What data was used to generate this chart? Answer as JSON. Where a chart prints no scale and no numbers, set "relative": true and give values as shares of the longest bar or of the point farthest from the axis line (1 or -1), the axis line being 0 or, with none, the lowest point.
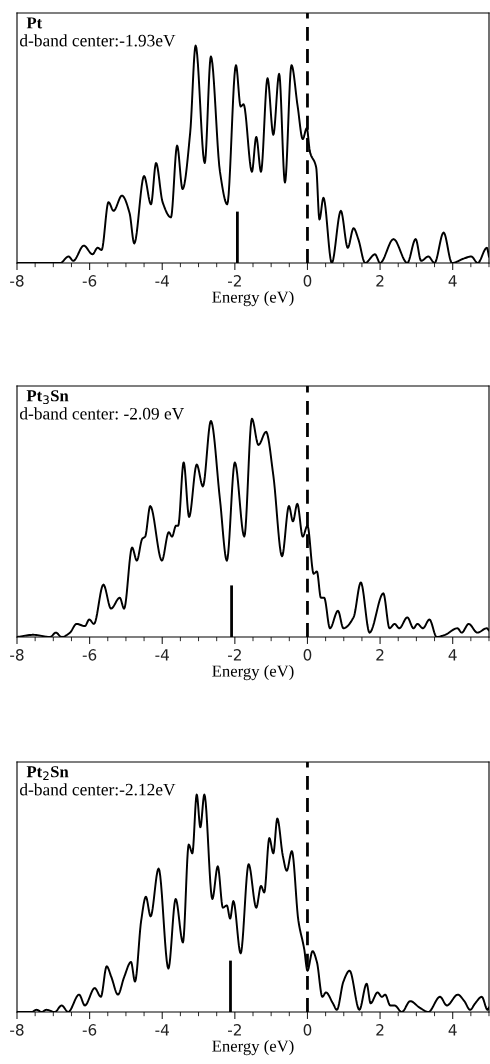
{
  "chart_data": [
    {
      "type": "line",
      "title": "Pt",
      "subtitle": "d-band center:-1.93eV",
      "xlabel": "Energy (eV)",
      "relative": true,
      "tick_labels": "x",
      "xlim": [
        -8,
        5
      ],
      "xticks": [
        -8,
        -6,
        -4,
        -2,
        0,
        2,
        4
      ],
      "marker": "none",
      "line_style": "solid",
      "grid": false,
      "ref_lines": [
        {
          "axis": "x",
          "value": -1.93,
          "line_style": "solid"
        },
        {
          "axis": "x",
          "value": 0,
          "line_style": "dashed"
        }
      ],
      "series": [
        {
          "color": "#000000",
          "x": [
            -8,
            -6.81,
            -6.58,
            -6.45,
            -6.16,
            -5.92,
            -5.78,
            -5.67,
            -5.48,
            -5.34,
            -5.11,
            -4.9,
            -4.77,
            -4.5,
            -4.31,
            -4.17,
            -3.99,
            -3.76,
            -3.59,
            -3.44,
            -3.23,
            -3.08,
            -2.83,
            -2.66,
            -2.41,
            -2.21,
            -1.97,
            -1.84,
            -1.76,
            -1.53,
            -1.41,
            -1.28,
            -1.1,
            -0.94,
            -0.78,
            -0.62,
            -0.44,
            -0.27,
            -0.13,
            -0.02,
            0.07,
            0.24,
            0.33,
            0.44,
            0.67,
            0.92,
            1.11,
            1.27,
            1.4,
            1.59,
            1.86,
            2.0,
            2.37,
            2.75,
            2.98,
            3.13,
            3.33,
            3.5,
            3.75,
            3.98,
            4.3,
            4.51,
            4.69,
            4.94,
            5.0
          ],
          "values": [
            0,
            0,
            0.03,
            0.01,
            0.08,
            0.04,
            0.07,
            0.06,
            0.28,
            0.24,
            0.31,
            0.23,
            0.09,
            0.4,
            0.27,
            0.46,
            0.28,
            0.21,
            0.54,
            0.34,
            0.6,
            1.0,
            0.46,
            0.95,
            0.42,
            0.27,
            0.91,
            0.72,
            0.73,
            0.42,
            0.58,
            0.42,
            0.85,
            0.59,
            0.87,
            0.37,
            0.91,
            0.72,
            0.57,
            0.62,
            0.51,
            0.44,
            0.2,
            0.3,
            0,
            0.24,
            0.07,
            0.16,
            0.11,
            0,
            0.04,
            0,
            0.11,
            0,
            0.11,
            0.01,
            0.03,
            0,
            0.14,
            0,
            0.02,
            0.03,
            0,
            0.07,
            0.03
          ]
        }
      ]
    },
    {
      "type": "line",
      "title": "Pt$_{3}$Sn",
      "subtitle": "d-band center: -2.09 eV",
      "xlabel": "Energy (eV)",
      "relative": true,
      "tick_labels": "x",
      "xlim": [
        -8,
        5
      ],
      "xticks": [
        -8,
        -6,
        -4,
        -2,
        0,
        2,
        4
      ],
      "marker": "none",
      "line_style": "solid",
      "grid": false,
      "ref_lines": [
        {
          "axis": "x",
          "value": -2.09,
          "line_style": "solid"
        },
        {
          "axis": "x",
          "value": 0,
          "line_style": "dashed"
        }
      ],
      "series": [
        {
          "color": "#000000",
          "x": [
            -8,
            -7.55,
            -7.09,
            -6.93,
            -6.77,
            -6.54,
            -6.36,
            -6.13,
            -6.01,
            -5.88,
            -5.62,
            -5.41,
            -5.17,
            -5.05,
            -4.83,
            -4.7,
            -4.55,
            -4.47,
            -4.33,
            -4.01,
            -3.82,
            -3.73,
            -3.62,
            -3.56,
            -3.41,
            -3.26,
            -3.05,
            -2.88,
            -2.66,
            -2.41,
            -2.22,
            -2.0,
            -1.74,
            -1.53,
            -1.35,
            -1.14,
            -0.94,
            -0.7,
            -0.51,
            -0.4,
            -0.28,
            -0.13,
            0,
            0.17,
            0.26,
            0.37,
            0.46,
            0.62,
            0.84,
            0.99,
            1.27,
            1.47,
            1.71,
            2.09,
            2.26,
            2.4,
            2.53,
            2.75,
            2.92,
            3.03,
            3.18,
            3.36,
            3.56,
            3.79,
            4.13,
            4.25,
            4.44,
            4.68,
            4.94,
            5.0
          ],
          "values": [
            0,
            0.01,
            0,
            0.02,
            0,
            0.02,
            0.06,
            0.05,
            0.08,
            0.06,
            0.24,
            0.13,
            0.18,
            0.13,
            0.41,
            0.35,
            0.45,
            0.46,
            0.6,
            0.35,
            0.48,
            0.46,
            0.51,
            0.51,
            0.8,
            0.55,
            0.79,
            0.69,
            0.99,
            0.63,
            0.35,
            0.8,
            0.46,
            1.0,
            0.88,
            0.94,
            0.74,
            0.37,
            0.6,
            0.53,
            0.61,
            0.46,
            0.51,
            0.29,
            0.3,
            0.18,
            0.18,
            0.04,
            0.12,
            0.04,
            0.09,
            0.25,
            0.02,
            0.2,
            0.04,
            0.06,
            0.04,
            0.09,
            0.04,
            0.06,
            0.04,
            0.08,
            0,
            0.01,
            0.04,
            0.02,
            0.06,
            0.02,
            0.04,
            0.03
          ]
        }
      ]
    },
    {
      "type": "line",
      "title": "Pt$_{2}$Sn",
      "subtitle": "d-band center:-2.12eV",
      "xlabel": "Energy (eV)",
      "relative": true,
      "tick_labels": "x",
      "xlim": [
        -8,
        5
      ],
      "xticks": [
        -8,
        -6,
        -4,
        -2,
        0,
        2,
        4
      ],
      "marker": "none",
      "line_style": "solid",
      "grid": false,
      "ref_lines": [
        {
          "axis": "x",
          "value": -2.12,
          "line_style": "solid"
        },
        {
          "axis": "x",
          "value": 0,
          "line_style": "dashed"
        }
      ],
      "series": [
        {
          "color": "#000000",
          "x": [
            -8,
            -7.6,
            -7.46,
            -7.32,
            -7.19,
            -6.96,
            -6.77,
            -6.59,
            -6.29,
            -6.13,
            -5.86,
            -5.69,
            -5.53,
            -5.4,
            -5.22,
            -5.05,
            -4.86,
            -4.75,
            -4.58,
            -4.45,
            -4.32,
            -4.1,
            -3.83,
            -3.63,
            -3.43,
            -3.27,
            -3.17,
            -3.05,
            -2.95,
            -2.84,
            -2.62,
            -2.47,
            -2.33,
            -2.22,
            -2.13,
            -2.04,
            -1.84,
            -1.62,
            -1.41,
            -1.28,
            -1.19,
            -1.05,
            -0.94,
            -0.83,
            -0.68,
            -0.57,
            -0.43,
            -0.25,
            -0.09,
            0,
            0.14,
            0.26,
            0.41,
            0.51,
            0.7,
            0.81,
            0.99,
            1.16,
            1.43,
            1.63,
            1.74,
            1.93,
            2.05,
            2.14,
            2.28,
            2.4,
            2.6,
            2.83,
            3.09,
            3.33,
            3.65,
            3.84,
            4.14,
            4.32,
            4.48,
            4.62,
            4.8,
            4.96,
            5.0
          ],
          "values": [
            0,
            0,
            0.01,
            0,
            0.01,
            0,
            0.03,
            0,
            0.08,
            0.03,
            0.11,
            0.07,
            0.21,
            0.16,
            0.08,
            0.16,
            0.23,
            0.14,
            0.42,
            0.53,
            0.44,
            0.66,
            0.2,
            0.52,
            0.32,
            0.77,
            0.73,
            1.0,
            0.85,
            1.0,
            0.52,
            0.67,
            0.48,
            0.49,
            0.43,
            0.51,
            0.27,
            0.68,
            0.48,
            0.58,
            0.55,
            0.8,
            0.73,
            0.89,
            0.72,
            0.65,
            0.74,
            0.42,
            0.29,
            0.19,
            0.28,
            0.23,
            0.07,
            0.09,
            0.04,
            0.01,
            0.14,
            0.19,
            0.01,
            0.13,
            0.04,
            0.09,
            0.07,
            0.08,
            0.03,
            0.03,
            0,
            0.05,
            0.02,
            0,
            0.07,
            0.03,
            0.08,
            0.05,
            0.01,
            0.04,
            0.07,
            0.01,
            0.02
          ]
        }
      ]
    }
  ]
}
